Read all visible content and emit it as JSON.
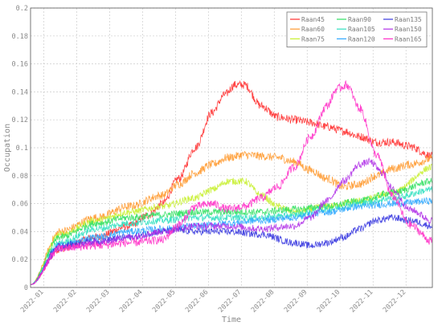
{
  "chart_data": {
    "type": "line",
    "title": "",
    "xlabel": "Time",
    "ylabel": "Occupation",
    "ylim": [
      0,
      0.2
    ],
    "yticks": [
      "0",
      "0.02",
      "0.04",
      "0.06",
      "0.08",
      "0.1",
      "0.12",
      "0.14",
      "0.16",
      "0.18",
      "0.2"
    ],
    "xlim": [
      0,
      12.2
    ],
    "xticks": [
      "2022-01",
      "2022-02",
      "2022-03",
      "2022-04",
      "2022-05",
      "2022-06",
      "2022-07",
      "2022-08",
      "2022-09",
      "2022-10",
      "2022-11",
      "2022-12"
    ],
    "grid": true,
    "legend_position": "top-right",
    "legend_columns": 3,
    "series": [
      {
        "name": "Raan45",
        "color": "#ff3030",
        "noise": 0.003,
        "x": [
          0,
          0.9,
          2,
          3,
          3.6,
          4,
          4.5,
          5,
          5.5,
          5.9,
          6.2,
          6.5,
          7,
          7.5,
          8,
          8.5,
          9,
          9.5,
          10,
          10.5,
          11,
          11.5,
          12.2
        ],
        "y": [
          0.002,
          0.028,
          0.036,
          0.044,
          0.052,
          0.06,
          0.078,
          0.1,
          0.125,
          0.138,
          0.145,
          0.145,
          0.13,
          0.122,
          0.12,
          0.118,
          0.115,
          0.112,
          0.108,
          0.104,
          0.104,
          0.101,
          0.094
        ]
      },
      {
        "name": "Raan60",
        "color": "#ff9a30",
        "noise": 0.003,
        "x": [
          0,
          0.9,
          2,
          3,
          4,
          4.5,
          5,
          5.5,
          6,
          6.5,
          7,
          7.5,
          8,
          8.5,
          9,
          9.5,
          10,
          10.5,
          11,
          11.5,
          12.2
        ],
        "y": [
          0.002,
          0.04,
          0.05,
          0.058,
          0.066,
          0.074,
          0.082,
          0.088,
          0.093,
          0.095,
          0.094,
          0.093,
          0.09,
          0.084,
          0.078,
          0.072,
          0.074,
          0.08,
          0.085,
          0.088,
          0.092
        ]
      },
      {
        "name": "Raan75",
        "color": "#c8f030",
        "noise": 0.0025,
        "x": [
          0,
          0.9,
          2,
          3,
          4,
          5,
          5.5,
          6,
          6.5,
          7,
          7.5,
          8,
          9,
          10,
          11,
          12.2
        ],
        "y": [
          0.002,
          0.038,
          0.048,
          0.054,
          0.058,
          0.064,
          0.07,
          0.076,
          0.076,
          0.066,
          0.058,
          0.054,
          0.058,
          0.062,
          0.068,
          0.086
        ]
      },
      {
        "name": "Raan90",
        "color": "#30e060",
        "noise": 0.0025,
        "x": [
          0,
          0.9,
          2,
          3,
          4,
          5,
          6,
          7,
          8,
          9,
          10,
          11,
          12.2
        ],
        "y": [
          0.002,
          0.036,
          0.046,
          0.05,
          0.052,
          0.054,
          0.054,
          0.054,
          0.056,
          0.058,
          0.062,
          0.068,
          0.076
        ]
      },
      {
        "name": "Raan105",
        "color": "#30e0c0",
        "noise": 0.0025,
        "x": [
          0,
          0.9,
          2,
          3,
          4,
          5,
          6,
          7,
          8,
          9,
          10,
          11,
          12.2
        ],
        "y": [
          0.002,
          0.032,
          0.042,
          0.046,
          0.048,
          0.05,
          0.05,
          0.05,
          0.052,
          0.056,
          0.06,
          0.064,
          0.07
        ]
      },
      {
        "name": "Raan120",
        "color": "#30a8ff",
        "noise": 0.0025,
        "x": [
          0,
          0.9,
          2,
          3,
          4,
          5,
          6,
          7,
          8,
          9,
          10,
          11,
          12.2
        ],
        "y": [
          0.002,
          0.03,
          0.036,
          0.04,
          0.042,
          0.044,
          0.046,
          0.048,
          0.05,
          0.054,
          0.058,
          0.06,
          0.062
        ]
      },
      {
        "name": "Raan135",
        "color": "#3838e0",
        "noise": 0.0025,
        "x": [
          0,
          0.9,
          2,
          3,
          4,
          4.5,
          5,
          6,
          7,
          8,
          8.5,
          9,
          9.5,
          10,
          10.5,
          11,
          11.5,
          12.2
        ],
        "y": [
          0.002,
          0.03,
          0.033,
          0.036,
          0.04,
          0.041,
          0.04,
          0.04,
          0.038,
          0.032,
          0.03,
          0.032,
          0.036,
          0.042,
          0.048,
          0.05,
          0.048,
          0.044
        ]
      },
      {
        "name": "Raan150",
        "color": "#b030e8",
        "noise": 0.0025,
        "x": [
          0,
          0.9,
          2,
          3,
          4,
          5,
          6,
          7,
          8,
          8.5,
          9,
          9.5,
          10,
          10.3,
          10.7,
          11,
          11.5,
          12.2
        ],
        "y": [
          0.002,
          0.028,
          0.032,
          0.036,
          0.04,
          0.044,
          0.044,
          0.042,
          0.044,
          0.05,
          0.062,
          0.076,
          0.088,
          0.09,
          0.082,
          0.07,
          0.056,
          0.048
        ]
      },
      {
        "name": "Raan165",
        "color": "#ff30c8",
        "noise": 0.003,
        "x": [
          0,
          0.9,
          2,
          3,
          4,
          4.5,
          5,
          5.5,
          6,
          6.5,
          7,
          7.5,
          8,
          8.5,
          9,
          9.3,
          9.6,
          10,
          10.5,
          11,
          11.5,
          12.2
        ],
        "y": [
          0.002,
          0.028,
          0.03,
          0.032,
          0.034,
          0.045,
          0.058,
          0.06,
          0.056,
          0.058,
          0.064,
          0.072,
          0.086,
          0.108,
          0.13,
          0.142,
          0.145,
          0.128,
          0.095,
          0.065,
          0.045,
          0.033
        ]
      }
    ]
  }
}
